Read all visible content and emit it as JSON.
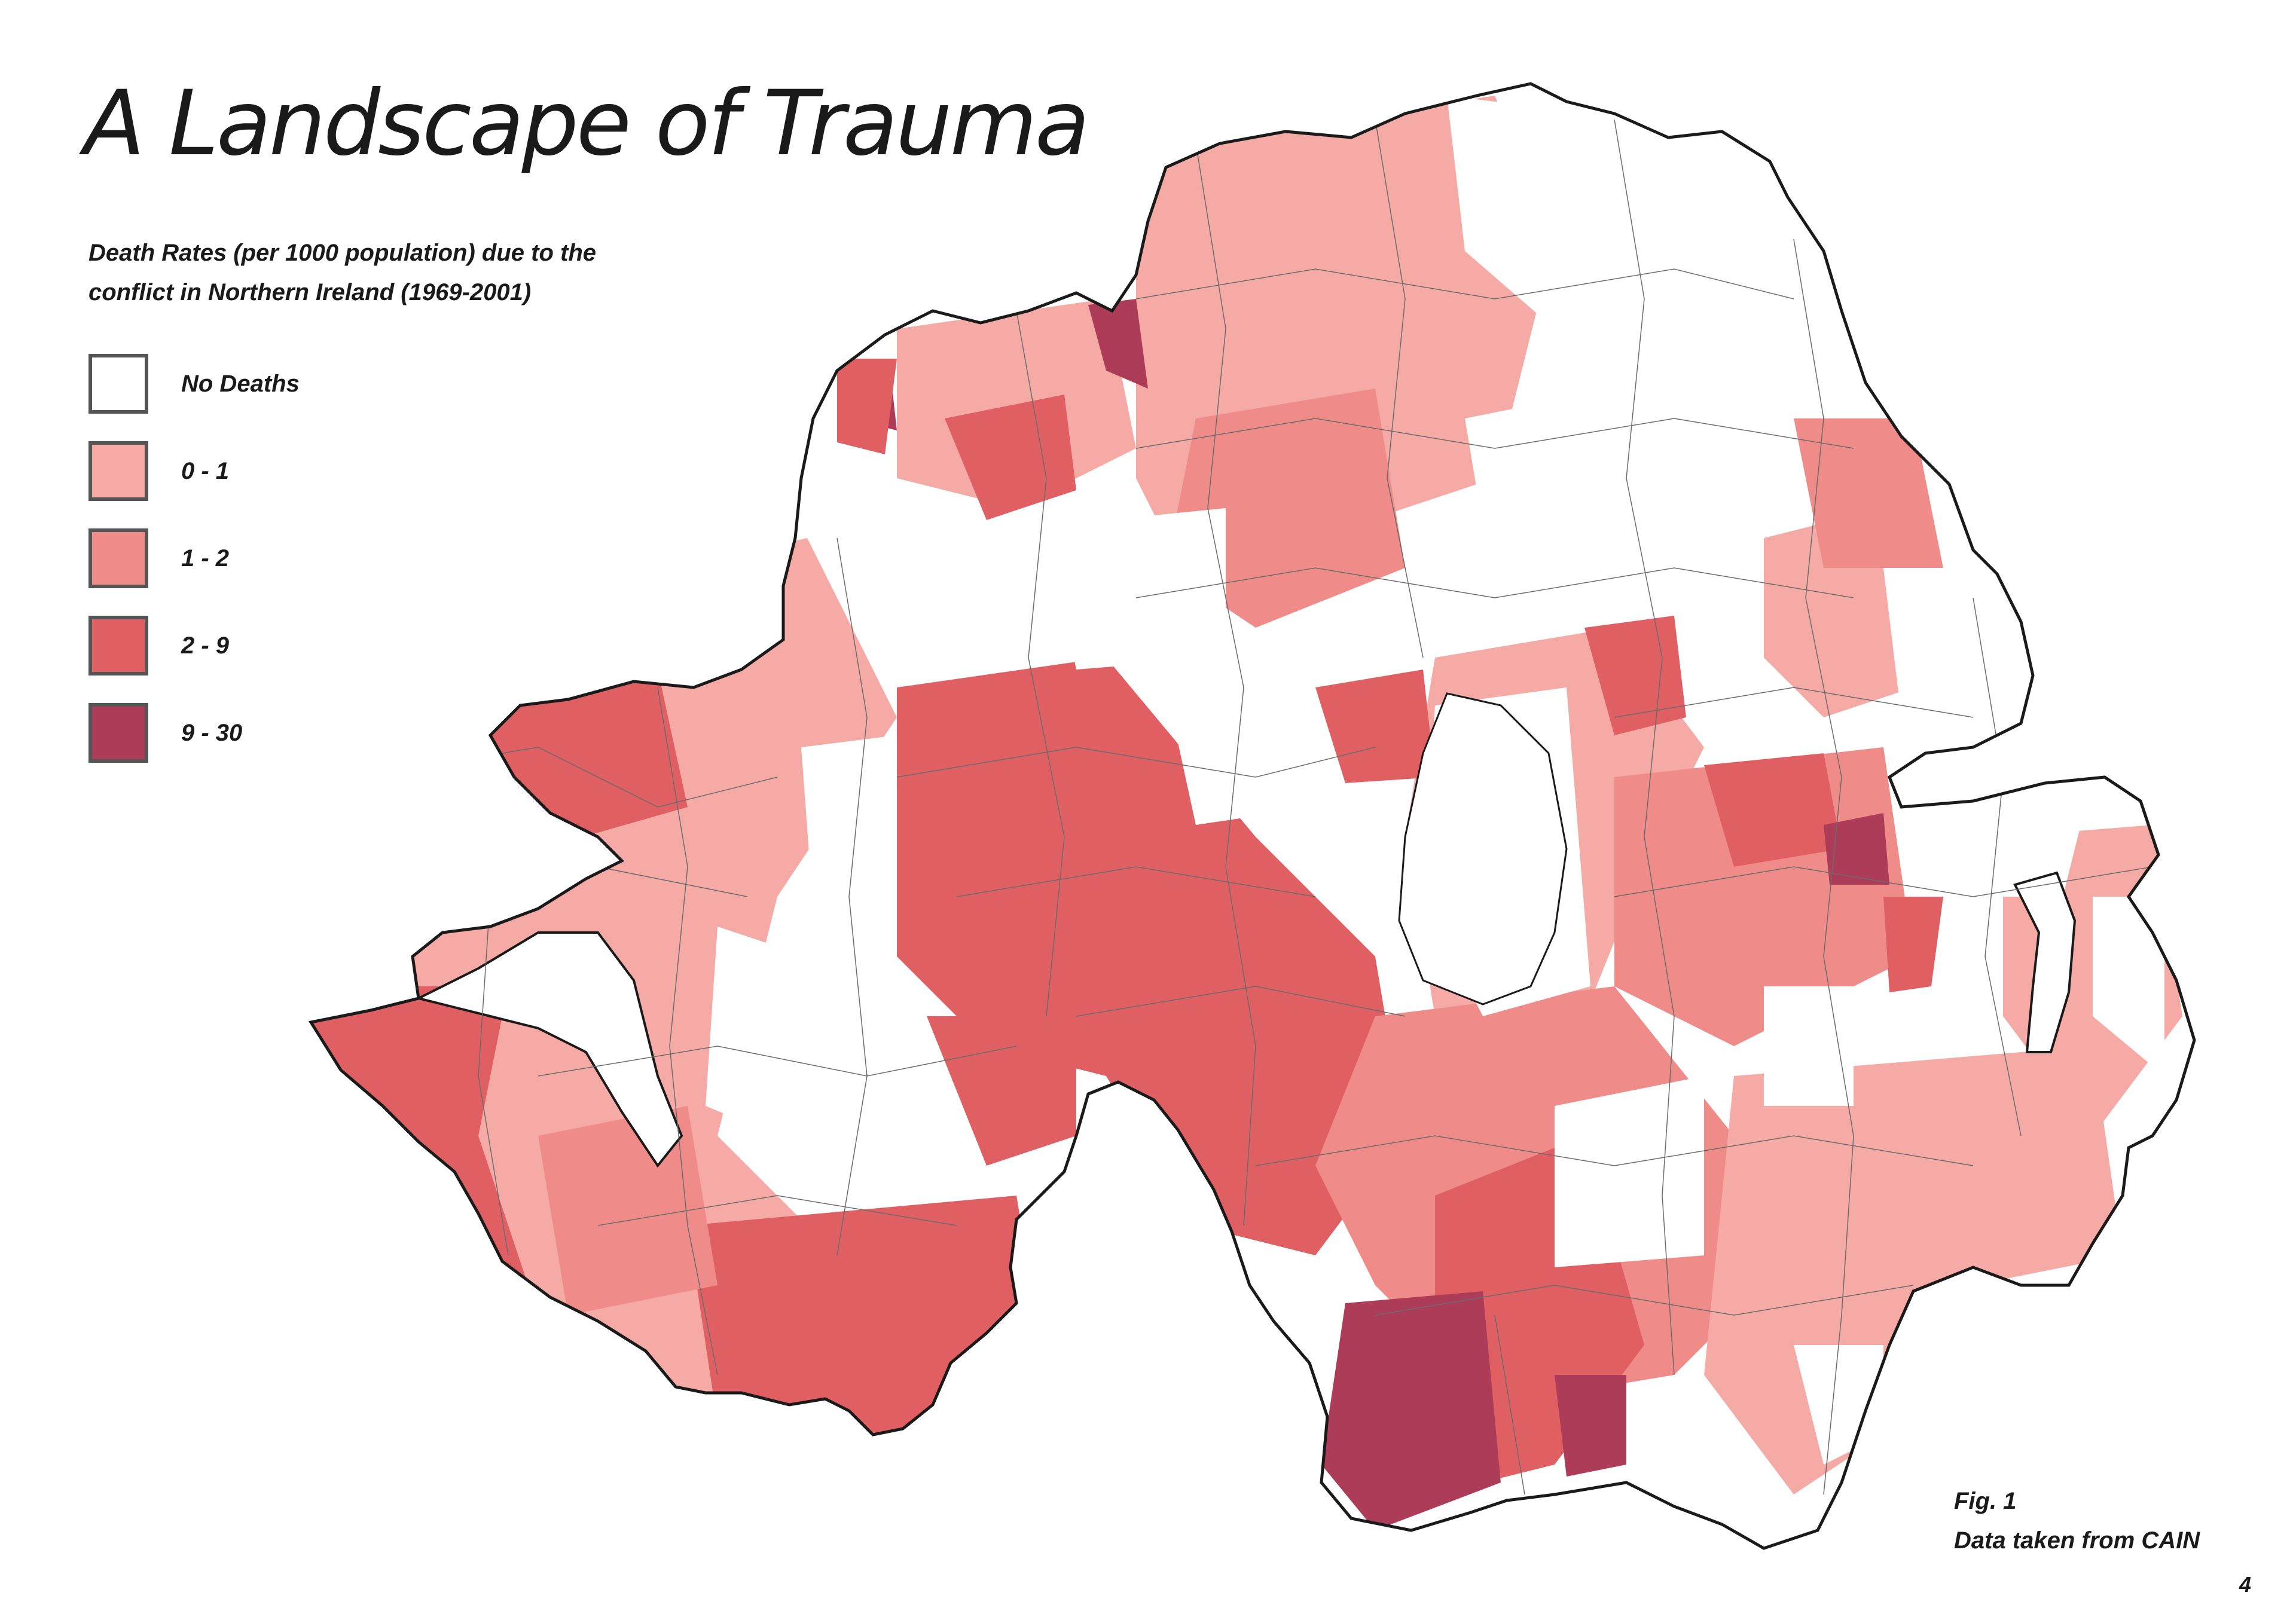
{
  "title": "A Landscape of Trauma",
  "subtitle": "Death Rates (per 1000 population) due to the conflict in Northern Ireland (1969-2001)",
  "legend": [
    {
      "label": "No Deaths",
      "color": "#ffffff"
    },
    {
      "label": "0 - 1",
      "color": "#f5aaa6"
    },
    {
      "label": "1 - 2",
      "color": "#ef8c89"
    },
    {
      "label": "2 - 9",
      "color": "#e05f63"
    },
    {
      "label": "9 - 30",
      "color": "#ad3c58"
    }
  ],
  "figure": {
    "number": "Fig. 1",
    "source": "Data taken from CAIN"
  },
  "page_number": "4",
  "colors": {
    "outline": "#1a1a1a",
    "border": "#555555"
  }
}
